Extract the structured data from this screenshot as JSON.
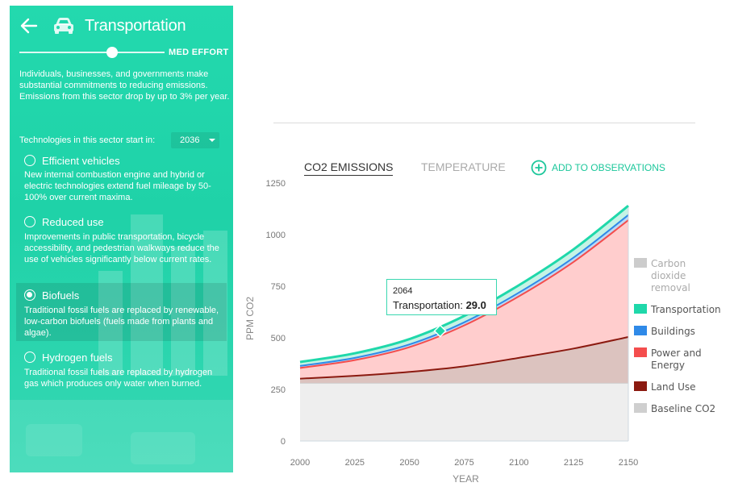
{
  "sidebar": {
    "title": "Transportation",
    "back_icon": "arrow-left-icon",
    "sector_icon": "car-icon",
    "effort_label": "MED EFFORT",
    "effort_level": 0.65,
    "description": "Individuals, businesses, and governments make substantial commitments to reducing emissions. Emissions from this sector drop by up to 3% per year.",
    "start_label": "Technologies in this sector start in:",
    "start_year": "2036",
    "options": [
      {
        "title": "Efficient vehicles",
        "desc": "New internal combustion engine and hybrid or electric technologies extend fuel mileage by 50-100% over current maxima.",
        "selected": false
      },
      {
        "title": "Reduced use",
        "desc": "Improvements in public transportation, bicycle accessibility, and pedestrian walkways reduce the use of vehicles significantly below current rates.",
        "selected": false
      },
      {
        "title": "Biofuels",
        "desc": "Traditional fossil fuels are replaced by renewable, low-carbon biofuels (fuels made from plants and algae).",
        "selected": true
      },
      {
        "title": "Hydrogen fuels",
        "desc": "Traditional fossil fuels are replaced by hydrogen gas which produces only water when burned.",
        "selected": false
      }
    ]
  },
  "tabs": {
    "co2": "CO2 EMISSIONS",
    "temperature": "TEMPERATURE",
    "add_observations": "ADD TO OBSERVATIONS"
  },
  "tooltip": {
    "year": "2064",
    "label": "Transportation:",
    "value": "29.0"
  },
  "chart_data": {
    "type": "area",
    "xlabel": "YEAR",
    "ylabel": "PPM CO2",
    "xlim": [
      2000,
      2150
    ],
    "ylim": [
      0,
      1250
    ],
    "x_ticks": [
      2000,
      2025,
      2050,
      2075,
      2100,
      2125,
      2150
    ],
    "y_ticks": [
      0,
      250,
      500,
      750,
      1000,
      1250
    ],
    "x": [
      2000,
      2025,
      2050,
      2075,
      2100,
      2125,
      2150
    ],
    "series": [
      {
        "name": "Carbon dioxide removal",
        "color": "#cccccc",
        "values": [
          0,
          0,
          0,
          0,
          0,
          0,
          0
        ]
      },
      {
        "name": "Transportation",
        "color": "#1fd8aa",
        "values": [
          19,
          22,
          26,
          31,
          36,
          40,
          45
        ]
      },
      {
        "name": "Buildings",
        "color": "#2f8ae8",
        "values": [
          10,
          11,
          13,
          15,
          18,
          21,
          25
        ]
      },
      {
        "name": "Power and Energy",
        "color": "#f44d4d",
        "values": [
          52,
          76,
          120,
          198,
          298,
          420,
          566
        ]
      },
      {
        "name": "Land Use",
        "color": "#8b1a10",
        "values": [
          22,
          36,
          55,
          82,
          123,
          168,
          224
        ]
      },
      {
        "name": "Baseline CO2",
        "color": "#cfcfcf",
        "values": [
          280,
          280,
          280,
          280,
          280,
          280,
          280
        ]
      }
    ]
  }
}
